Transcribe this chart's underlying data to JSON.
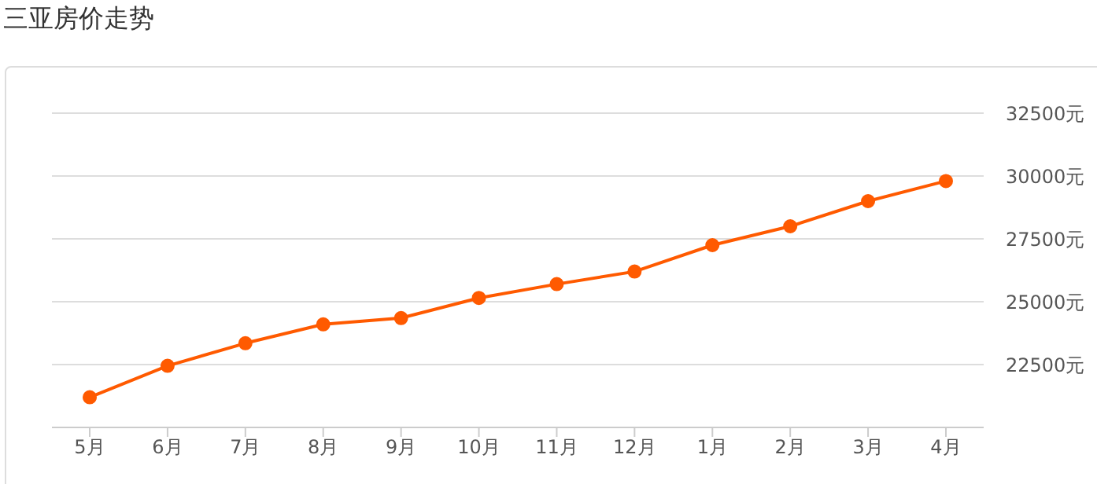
{
  "chart_data": {
    "type": "line",
    "title": "三亚房价走势",
    "categories": [
      "5月",
      "6月",
      "7月",
      "8月",
      "9月",
      "10月",
      "11月",
      "12月",
      "1月",
      "2月",
      "3月",
      "4月"
    ],
    "series": [
      {
        "color": "#ff5a00",
        "values": [
          21200,
          22450,
          23350,
          24100,
          24350,
          25150,
          25700,
          26200,
          27250,
          28000,
          29000,
          29800
        ]
      }
    ],
    "ylim": [
      20000,
      32500
    ],
    "yticks": [
      {
        "value": 22500,
        "label": "22500元"
      },
      {
        "value": 25000,
        "label": "25000元"
      },
      {
        "value": 27500,
        "label": "27500元"
      },
      {
        "value": 30000,
        "label": "30000元"
      },
      {
        "value": 32500,
        "label": "32500元"
      }
    ],
    "grid": "y",
    "marker": "circle",
    "line_style": "solid",
    "legend": false
  }
}
